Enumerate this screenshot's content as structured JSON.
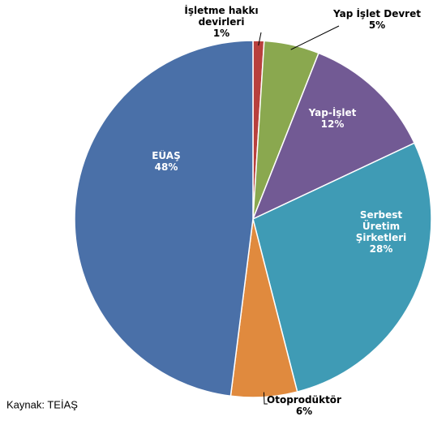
{
  "chart_data": {
    "type": "pie",
    "categories": [
      "İşletme hakkı devirleri",
      "Yap İşlet Devret",
      "Yap-İşlet",
      "Serbest Üretim Şirketleri",
      "Otoprodüktör",
      "EÜAŞ"
    ],
    "values": [
      1,
      5,
      12,
      28,
      6,
      48
    ],
    "value_labels": [
      "1%",
      "5%",
      "12%",
      "28%",
      "6%",
      "48%"
    ],
    "colors": [
      "#b8403d",
      "#8aa84f",
      "#725a94",
      "#3f9bb5",
      "#e08a3e",
      "#4a70a8"
    ],
    "source": "Kaynak: TEİAŞ"
  }
}
